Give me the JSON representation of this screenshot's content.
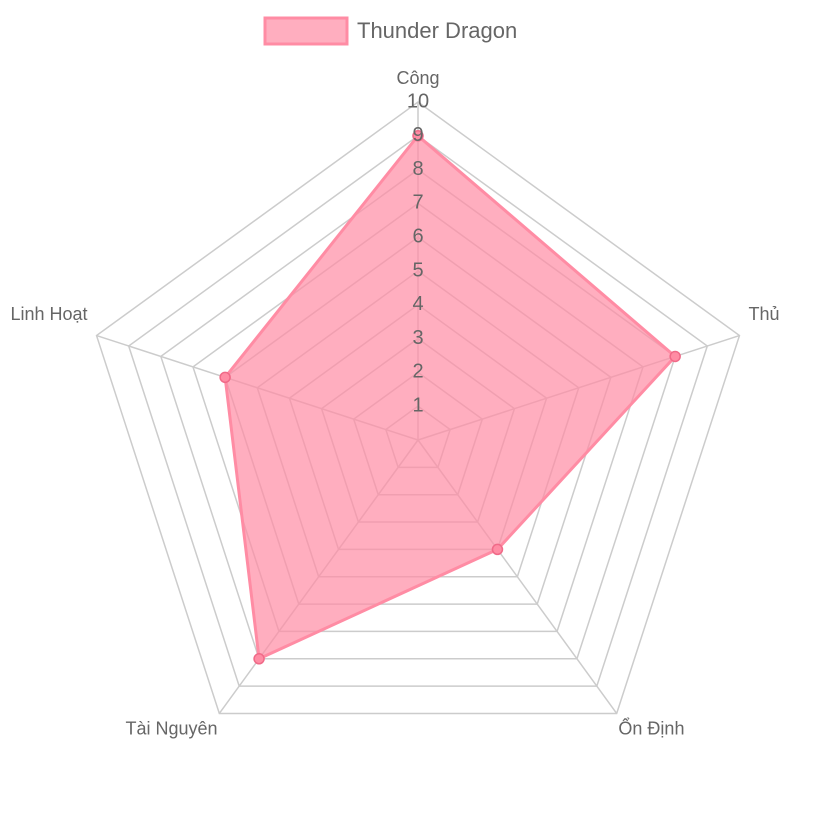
{
  "chart_data": {
    "type": "radar",
    "categories": [
      "Công",
      "Thủ",
      "Ổn Định",
      "Tài Nguyên",
      "Linh Hoạt"
    ],
    "series": [
      {
        "name": "Thunder Dragon",
        "color": "#ff8ca4",
        "values": [
          9,
          8,
          4,
          8,
          6
        ]
      }
    ],
    "rlim": [
      0,
      10
    ],
    "rticks": [
      1,
      2,
      3,
      4,
      5,
      6,
      7,
      8,
      9,
      10
    ],
    "grid": true,
    "legend": "top"
  }
}
